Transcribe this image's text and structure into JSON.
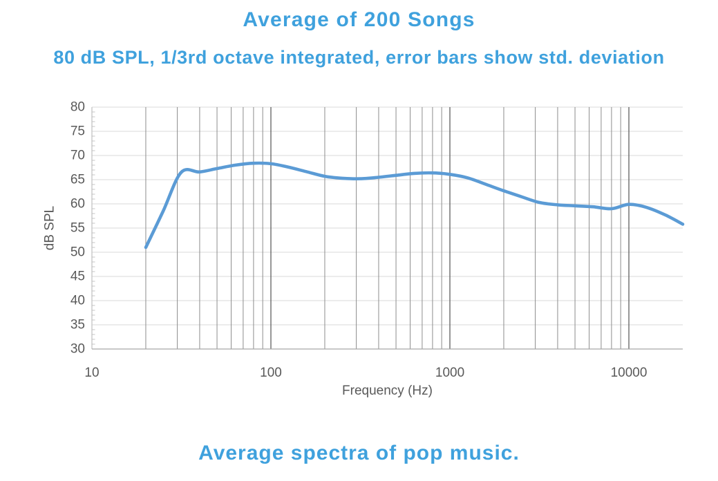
{
  "chart_data": {
    "type": "line",
    "title": "Average of 200 Songs",
    "subtitle": "80 dB SPL, 1/3rd octave integrated, error bars show std. deviation",
    "caption": "Average spectra of pop music.",
    "xlabel": "Frequency (Hz)",
    "ylabel": "dB SPL",
    "x_scale": "log",
    "xlim": [
      10,
      20000
    ],
    "ylim": [
      30,
      80
    ],
    "x_major_ticks": [
      10,
      100,
      1000,
      10000
    ],
    "y_major_tick_step": 5,
    "y_minor_tick_step": 1,
    "grid": true,
    "legend": "none",
    "error_bars_visible": false,
    "series": [
      {
        "name": "Average of 200 Songs",
        "x": [
          20,
          25,
          31.5,
          40,
          50,
          63,
          80,
          100,
          125,
          160,
          200,
          250,
          315,
          400,
          500,
          630,
          800,
          1000,
          1250,
          1600,
          2000,
          2500,
          3150,
          4000,
          5000,
          6300,
          8000,
          10000,
          12500,
          16000,
          20000
        ],
        "y": [
          51.0,
          58.5,
          66.5,
          66.6,
          67.3,
          68.0,
          68.4,
          68.3,
          67.6,
          66.6,
          65.7,
          65.3,
          65.2,
          65.5,
          65.9,
          66.3,
          66.4,
          66.1,
          65.4,
          64.0,
          62.7,
          61.5,
          60.3,
          59.8,
          59.6,
          59.4,
          59.0,
          59.9,
          59.3,
          57.7,
          55.8
        ]
      }
    ],
    "colors": {
      "line": "#5B9BD5",
      "heading_text": "#3FA1DD",
      "axis_text": "#595959",
      "grid_horizontal": "#D9D9D9",
      "grid_vertical_minor": "#8C8C8C",
      "grid_vertical_major": "#5E5E5E",
      "axis_line_bottom": "#A6A6A6",
      "axis_line_left": "#BFBFBF",
      "minor_tick": "#C4C4C4"
    }
  }
}
